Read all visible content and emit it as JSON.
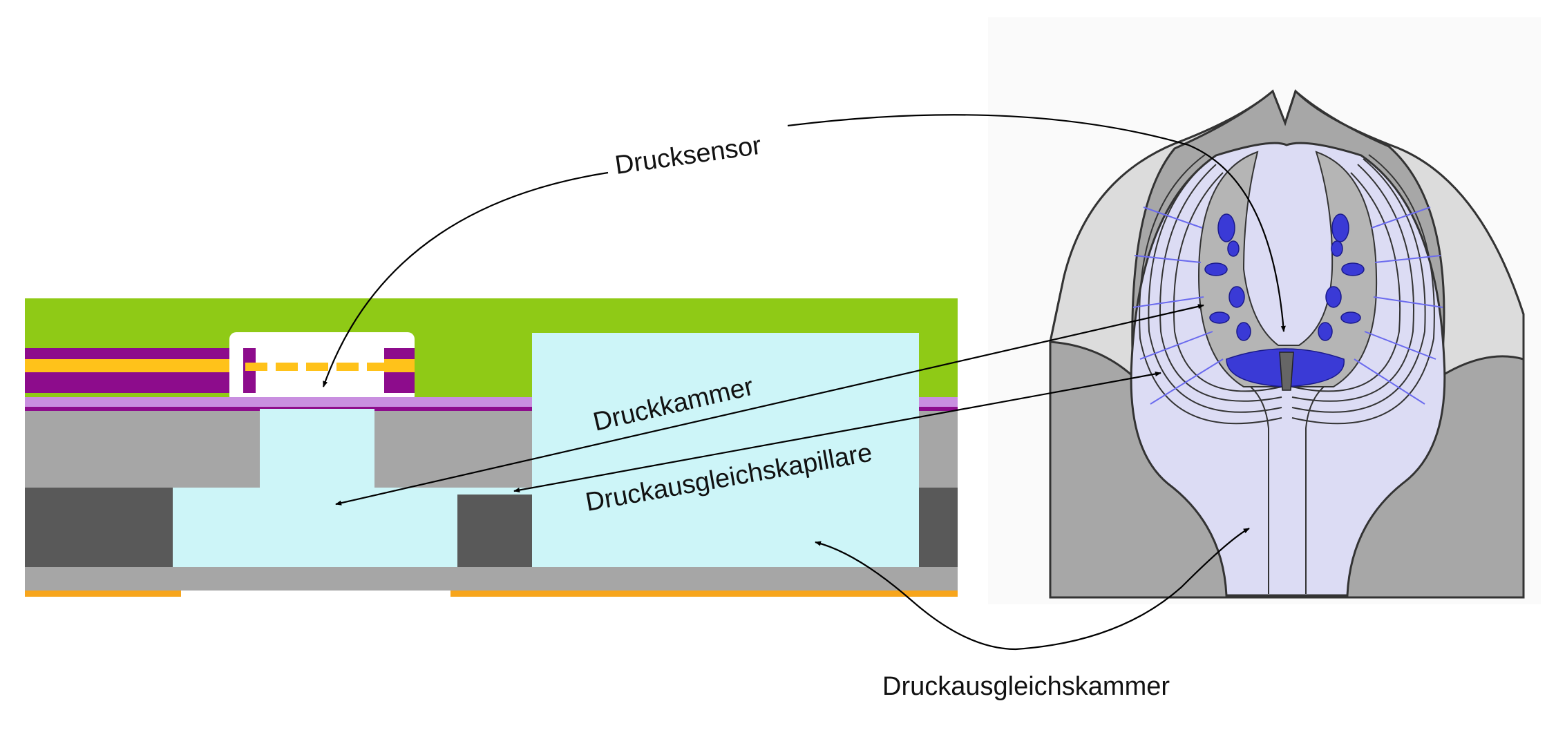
{
  "labels": {
    "drucksensor": "Drucksensor",
    "druckkammer": "Druckkammer",
    "capillary": "Druckausgleichskapillare",
    "equalizing_chamber": "Druckausgleichskammer"
  },
  "colors": {
    "substrate_green": "#8fca16",
    "chamber_fill": "#cdf5f8",
    "silicon_gray": "#a6a6a6",
    "dark_gray": "#595959",
    "purple": "#8d0c8c",
    "yellow": "#ffc21a",
    "lilac": "#c98fe0",
    "orange": "#f7a51c",
    "bio_light_gray": "#dcdcdc",
    "bio_mid_gray": "#b7b7b7",
    "bio_lavender": "#dcdcf4",
    "bio_blue": "#3a3ad6",
    "bio_line": "#6a6aee",
    "arrow": "#000000"
  }
}
